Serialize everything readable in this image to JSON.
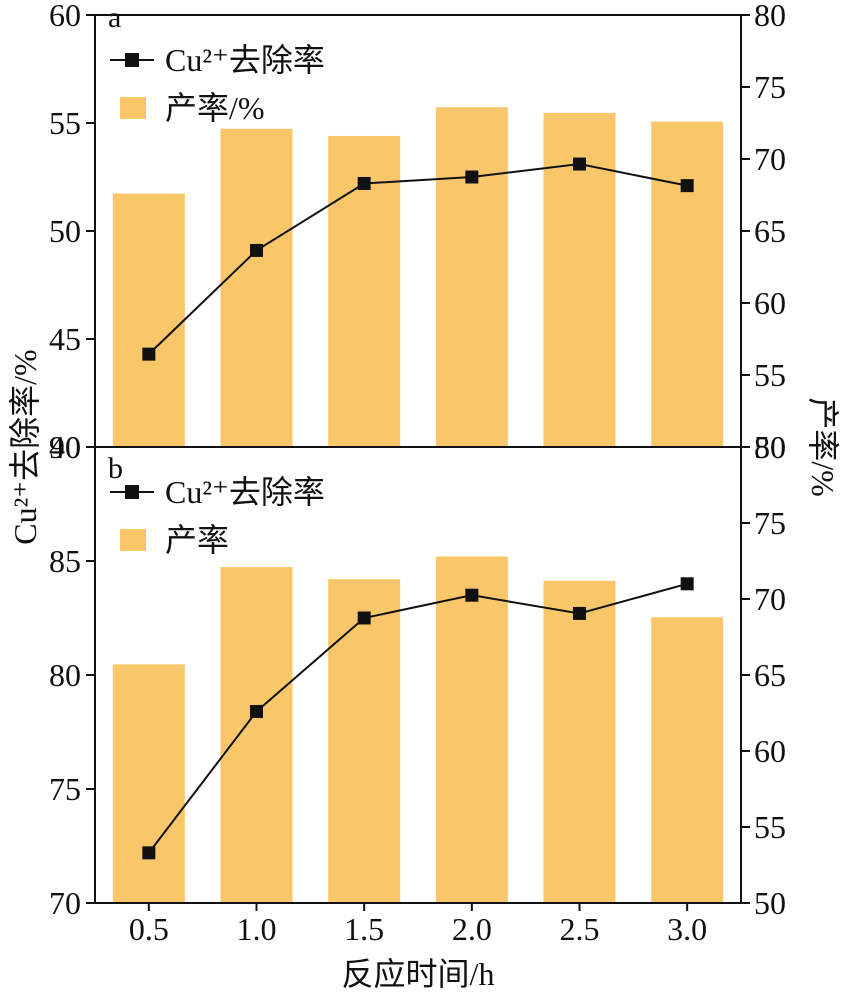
{
  "figure": {
    "xlabel": "反应时间/h",
    "ylabel_left": "Cu²⁺去除率/%",
    "ylabel_right": "产率/%",
    "bar_color": "#F9C76A",
    "line_color": "#111111",
    "marker_color": "#111111"
  },
  "chart_data": [
    {
      "panel": "a",
      "type": "bar+line",
      "categories": [
        "0.5",
        "1.0",
        "1.5",
        "2.0",
        "2.5",
        "3.0"
      ],
      "line_series": {
        "name": "Cu²⁺去除率",
        "axis": "left",
        "values": [
          44.3,
          49.1,
          52.2,
          52.5,
          53.1,
          52.1
        ]
      },
      "bar_series": {
        "name": "产率/%",
        "axis": "right",
        "values": [
          67.6,
          72.1,
          71.6,
          73.6,
          73.2,
          72.6
        ]
      },
      "ylim_left": [
        40,
        60
      ],
      "yticks_left": [
        40,
        45,
        50,
        55,
        60
      ],
      "ylim_right": [
        50,
        80
      ],
      "yticks_right": [
        50,
        55,
        60,
        65,
        70,
        75,
        80
      ],
      "legend": [
        "Cu²⁺去除率",
        "产率/%"
      ],
      "legend_position": "top-left"
    },
    {
      "panel": "b",
      "type": "bar+line",
      "categories": [
        "0.5",
        "1.0",
        "1.5",
        "2.0",
        "2.5",
        "3.0"
      ],
      "line_series": {
        "name": "Cu²⁺去除率",
        "axis": "left",
        "values": [
          72.2,
          78.4,
          82.5,
          83.5,
          82.7,
          84.0
        ]
      },
      "bar_series": {
        "name": "产率",
        "axis": "right",
        "values": [
          65.7,
          72.1,
          71.3,
          72.8,
          71.2,
          68.8
        ]
      },
      "ylim_left": [
        70,
        90
      ],
      "yticks_left": [
        70,
        75,
        80,
        85,
        90
      ],
      "ylim_right": [
        50,
        80
      ],
      "yticks_right": [
        50,
        55,
        60,
        65,
        70,
        75,
        80
      ],
      "legend": [
        "Cu²⁺去除率",
        "产率"
      ],
      "legend_position": "top-left"
    }
  ]
}
